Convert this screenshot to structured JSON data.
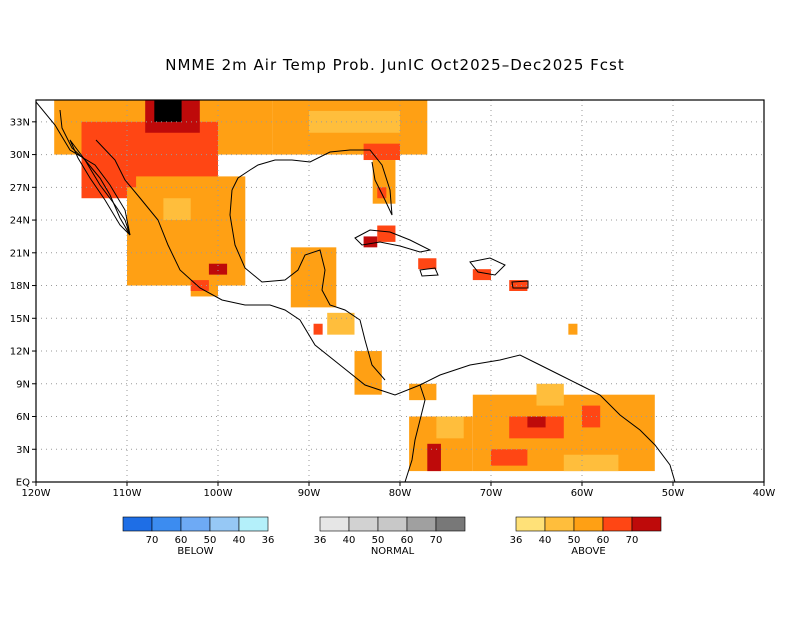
{
  "title": "NMME 2m Air Temp Prob. JunIC  Oct2025–Dec2025 Fcst",
  "map": {
    "lon_range": [
      -120,
      -40
    ],
    "lat_range": [
      0,
      35
    ],
    "x_ticks": [
      {
        "lon": -120,
        "label": "120W"
      },
      {
        "lon": -110,
        "label": "110W"
      },
      {
        "lon": -100,
        "label": "100W"
      },
      {
        "lon": -90,
        "label": "90W"
      },
      {
        "lon": -80,
        "label": "80W"
      },
      {
        "lon": -70,
        "label": "70W"
      },
      {
        "lon": -60,
        "label": "60W"
      },
      {
        "lon": -50,
        "label": "50W"
      },
      {
        "lon": -40,
        "label": "40W"
      }
    ],
    "y_ticks": [
      {
        "lat": 0,
        "label": "EQ"
      },
      {
        "lat": 3,
        "label": "3N"
      },
      {
        "lat": 6,
        "label": "6N"
      },
      {
        "lat": 9,
        "label": "9N"
      },
      {
        "lat": 12,
        "label": "12N"
      },
      {
        "lat": 15,
        "label": "15N"
      },
      {
        "lat": 18,
        "label": "18N"
      },
      {
        "lat": 21,
        "label": "21N"
      },
      {
        "lat": 24,
        "label": "24N"
      },
      {
        "lat": 27,
        "label": "27N"
      },
      {
        "lat": 30,
        "label": "30N"
      },
      {
        "lat": 33,
        "label": "33N"
      }
    ],
    "grid_lon": [
      -110,
      -100,
      -90,
      -80,
      -70,
      -60,
      -50
    ],
    "grid_lat": [
      3,
      6,
      9,
      12,
      15,
      18,
      21,
      24,
      27,
      30,
      33
    ],
    "coastline_color": "#000000",
    "regions": [
      {
        "level": 2,
        "lon": [
          -118,
          -94
        ],
        "lat": [
          30,
          35
        ]
      },
      {
        "level": 3,
        "lon": [
          -115,
          -100
        ],
        "lat": [
          26,
          33
        ]
      },
      {
        "level": 4,
        "lon": [
          -108,
          -102
        ],
        "lat": [
          32,
          35
        ]
      },
      {
        "level": 5,
        "lon": [
          -107,
          -104
        ],
        "lat": [
          33,
          35
        ]
      },
      {
        "level": 2,
        "lon": [
          -110,
          -97
        ],
        "lat": [
          18,
          28
        ]
      },
      {
        "level": 1,
        "lon": [
          -106,
          -103
        ],
        "lat": [
          24,
          26
        ]
      },
      {
        "level": 3,
        "lon": [
          -112,
          -109
        ],
        "lat": [
          27,
          30
        ]
      },
      {
        "level": 2,
        "lon": [
          -94,
          -77
        ],
        "lat": [
          30,
          35
        ]
      },
      {
        "level": 1,
        "lon": [
          -90,
          -80
        ],
        "lat": [
          32,
          34
        ]
      },
      {
        "level": 3,
        "lon": [
          -84,
          -80
        ],
        "lat": [
          29.5,
          31
        ]
      },
      {
        "level": 2,
        "lon": [
          -83,
          -80.5
        ],
        "lat": [
          25.5,
          29.5
        ]
      },
      {
        "level": 3,
        "lon": [
          -82.5,
          -81.5
        ],
        "lat": [
          26,
          27
        ]
      },
      {
        "level": 2,
        "lon": [
          -103,
          -100
        ],
        "lat": [
          17,
          20
        ]
      },
      {
        "level": 4,
        "lon": [
          -101,
          -99
        ],
        "lat": [
          19,
          20
        ]
      },
      {
        "level": 3,
        "lon": [
          -103,
          -101
        ],
        "lat": [
          17.5,
          18.5
        ]
      },
      {
        "level": 2,
        "lon": [
          -92,
          -87
        ],
        "lat": [
          16,
          21.5
        ]
      },
      {
        "level": 1,
        "lon": [
          -88,
          -85
        ],
        "lat": [
          13.5,
          15.5
        ]
      },
      {
        "level": 2,
        "lon": [
          -85,
          -82
        ],
        "lat": [
          8,
          12
        ]
      },
      {
        "level": 3,
        "lon": [
          -89.5,
          -88.5
        ],
        "lat": [
          13.5,
          14.5
        ]
      },
      {
        "level": 3,
        "lon": [
          -82.5,
          -80.5
        ],
        "lat": [
          22,
          23.5
        ]
      },
      {
        "level": 4,
        "lon": [
          -84,
          -82.5
        ],
        "lat": [
          21.5,
          22.5
        ]
      },
      {
        "level": 3,
        "lon": [
          -78,
          -76
        ],
        "lat": [
          19.5,
          20.5
        ]
      },
      {
        "level": 3,
        "lon": [
          -68,
          -66
        ],
        "lat": [
          17.5,
          18.5
        ]
      },
      {
        "level": 3,
        "lon": [
          -72,
          -70
        ],
        "lat": [
          18.5,
          19.5
        ]
      },
      {
        "level": 2,
        "lon": [
          -61.5,
          -60.5
        ],
        "lat": [
          13.5,
          14.5
        ]
      },
      {
        "level": 2,
        "lon": [
          -79,
          -76
        ],
        "lat": [
          7.5,
          9
        ]
      },
      {
        "level": 2,
        "lon": [
          -79,
          -72
        ],
        "lat": [
          1,
          6
        ]
      },
      {
        "level": 1,
        "lon": [
          -76,
          -73
        ],
        "lat": [
          4,
          6
        ]
      },
      {
        "level": 4,
        "lon": [
          -77,
          -75.5
        ],
        "lat": [
          1,
          3.5
        ]
      },
      {
        "level": 2,
        "lon": [
          -72,
          -52
        ],
        "lat": [
          1,
          8
        ]
      },
      {
        "level": 1,
        "lon": [
          -65,
          -62
        ],
        "lat": [
          7,
          9
        ]
      },
      {
        "level": 3,
        "lon": [
          -68,
          -62
        ],
        "lat": [
          4,
          6
        ]
      },
      {
        "level": 4,
        "lon": [
          -66,
          -64
        ],
        "lat": [
          5,
          6
        ]
      },
      {
        "level": 3,
        "lon": [
          -60,
          -58
        ],
        "lat": [
          5,
          7
        ]
      },
      {
        "level": 3,
        "lon": [
          -70,
          -66
        ],
        "lat": [
          1.5,
          3
        ]
      },
      {
        "level": 1,
        "lon": [
          -62,
          -56
        ],
        "lat": [
          1,
          2.5
        ]
      }
    ]
  },
  "legend": {
    "groups": [
      {
        "name": "BELOW",
        "colors": [
          "#1e6ee6",
          "#3c8cf0",
          "#6eaaf5",
          "#96c8f5",
          "#b4f0fa"
        ],
        "labels": [
          "70",
          "60",
          "50",
          "40",
          "36"
        ]
      },
      {
        "name": "NORMAL",
        "colors": [
          "#e6e6e6",
          "#d2d2d2",
          "#c8c8c8",
          "#a0a0a0",
          "#787878"
        ],
        "labels": [
          "36",
          "40",
          "50",
          "60",
          "70"
        ]
      },
      {
        "name": "ABOVE",
        "colors": [
          "#ffe178",
          "#ffbe3c",
          "#ffa014",
          "#ff4614",
          "#be0a0a"
        ],
        "labels": [
          "36",
          "40",
          "50",
          "60",
          "70"
        ]
      }
    ]
  }
}
